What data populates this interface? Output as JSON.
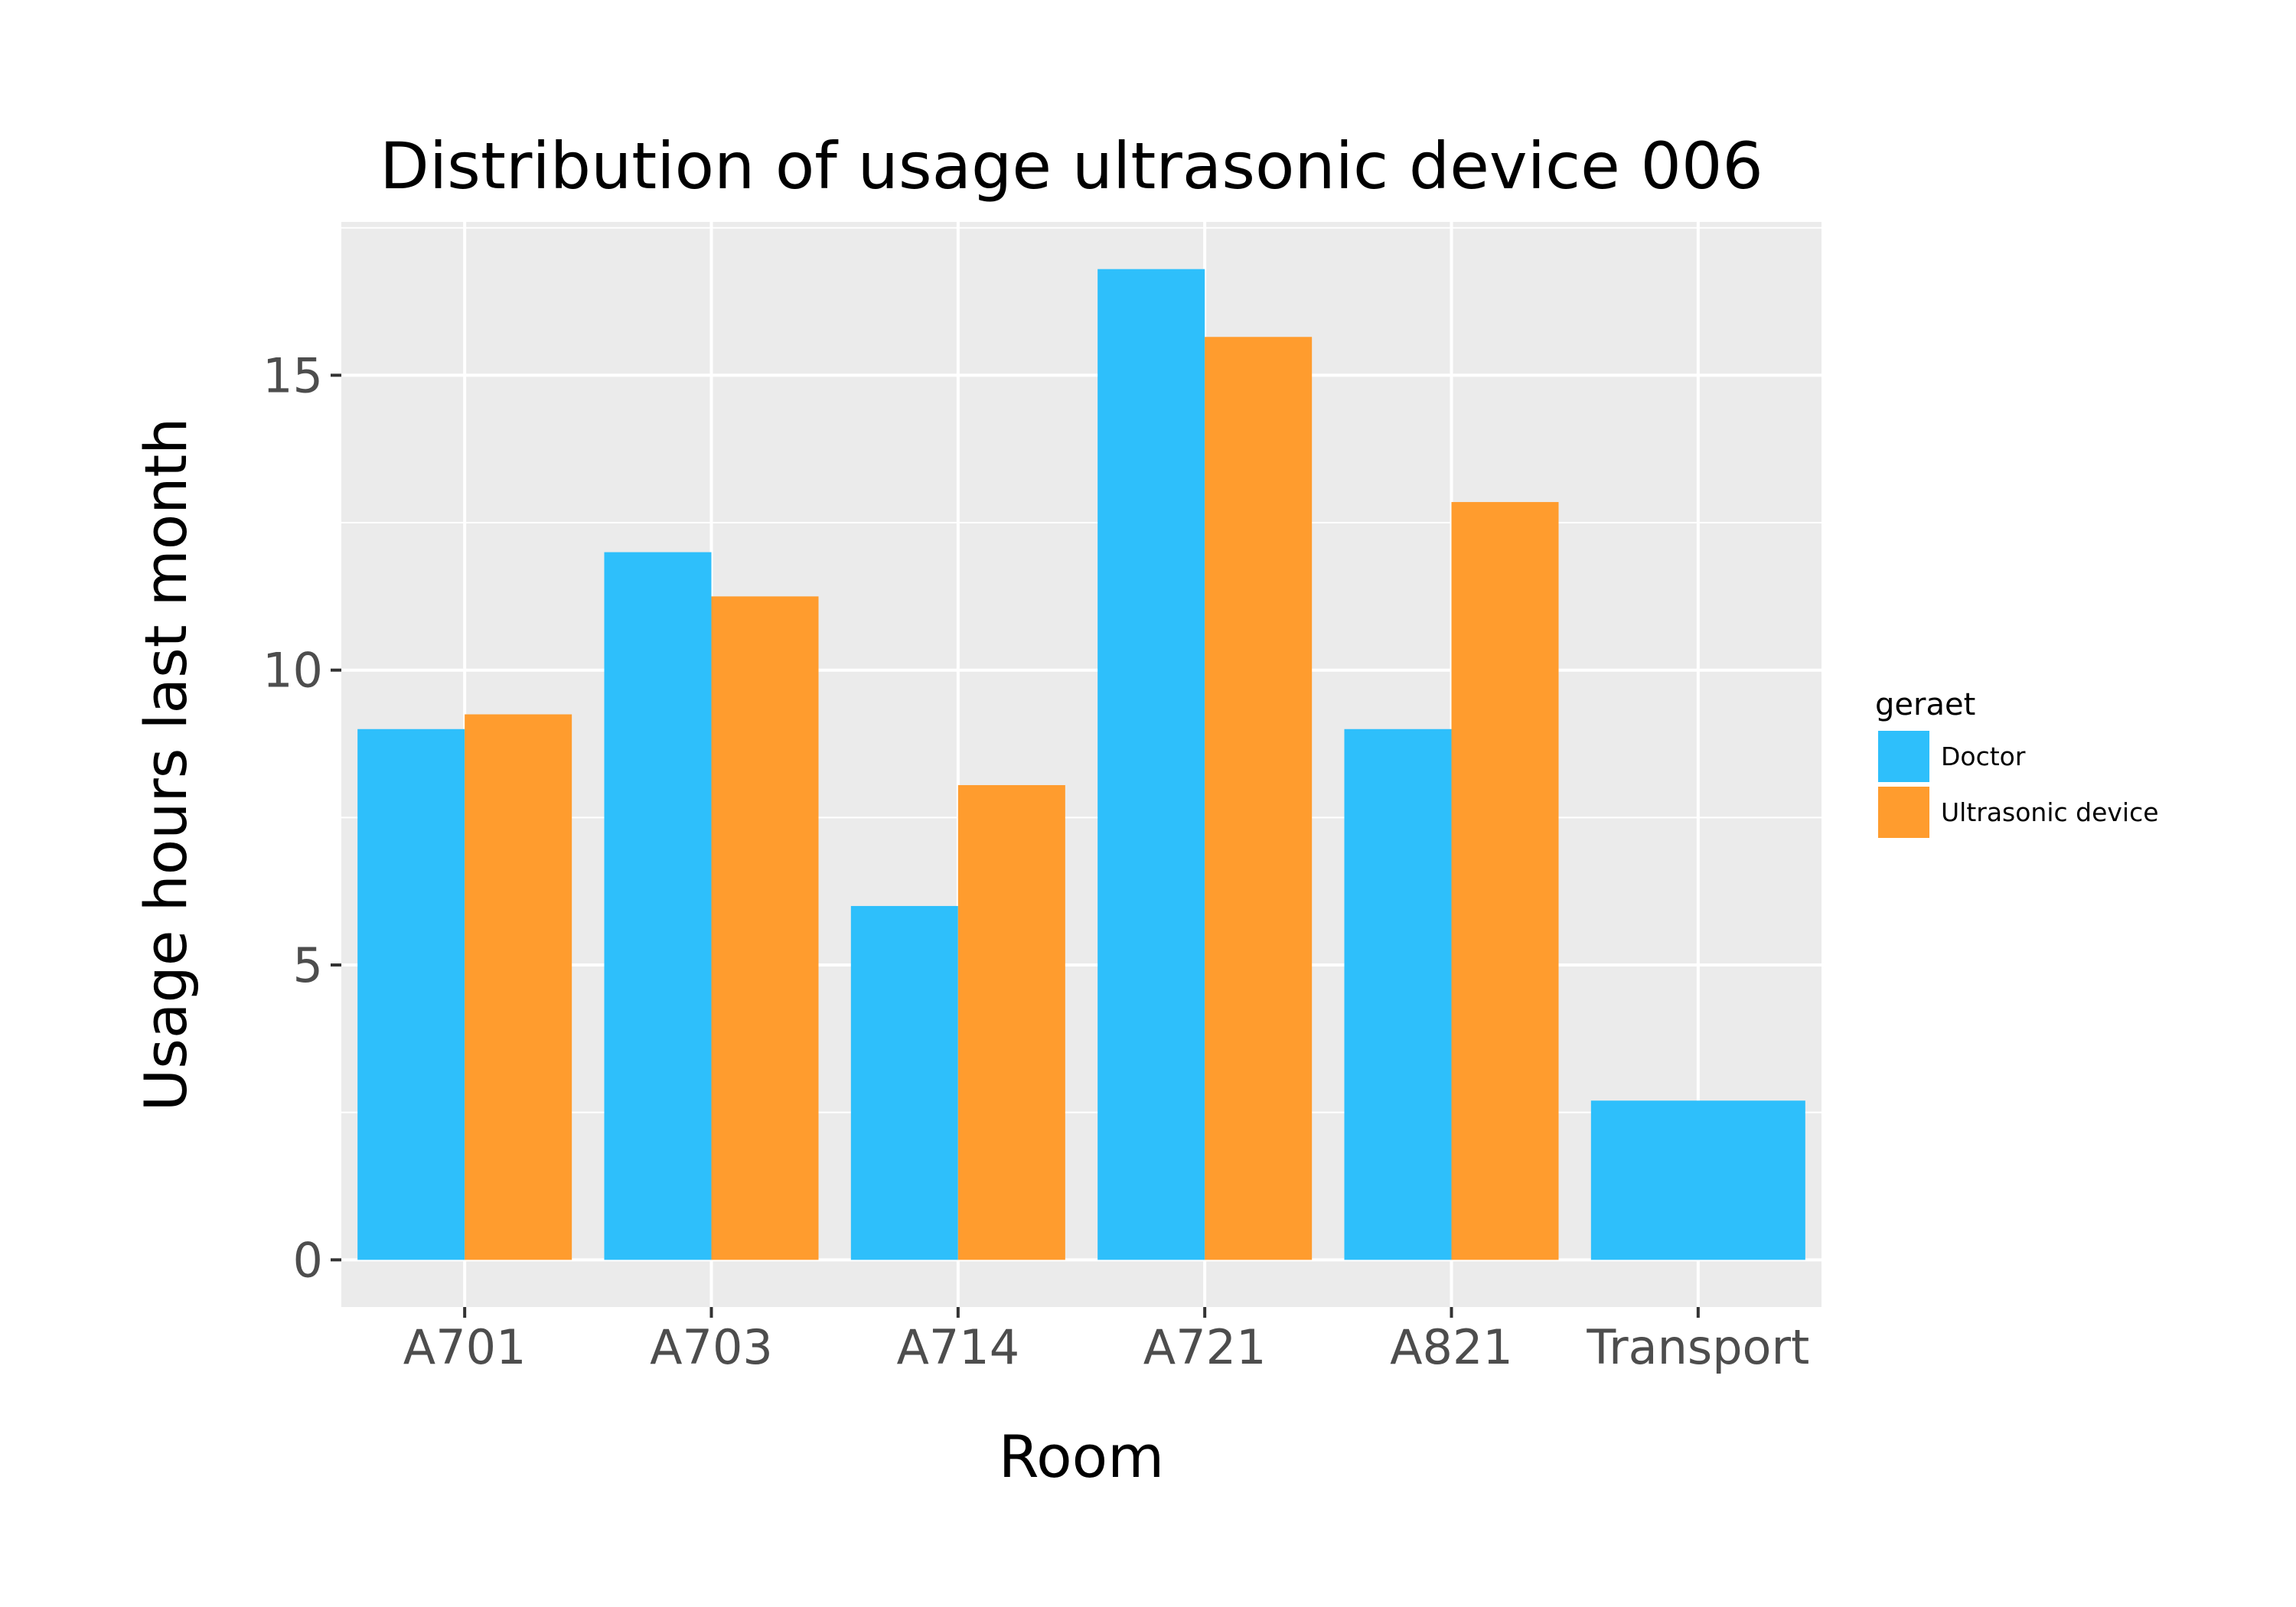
{
  "chart_data": {
    "type": "bar",
    "title": "Distribution of usage ultrasonic device 006",
    "xlabel": "Room",
    "ylabel": "Usage hours last month",
    "categories": [
      "A701",
      "A703",
      "A714",
      "A721",
      "A821",
      "Transport"
    ],
    "series": [
      {
        "name": "Doctor",
        "color": "#2EBFFB",
        "values": [
          9,
          12,
          6,
          16.8,
          9,
          2.7
        ]
      },
      {
        "name": "Ultrasonic device",
        "color": "#FF9C2E",
        "values": [
          9.25,
          11.25,
          8.05,
          15.65,
          12.85,
          null
        ]
      }
    ],
    "yticks": [
      0,
      5,
      10,
      15
    ],
    "ylim": [
      -0.8,
      17.6
    ],
    "grid": true,
    "panel_background": "#EBEBEB",
    "legend": {
      "title": "geraet",
      "position": "right"
    }
  }
}
